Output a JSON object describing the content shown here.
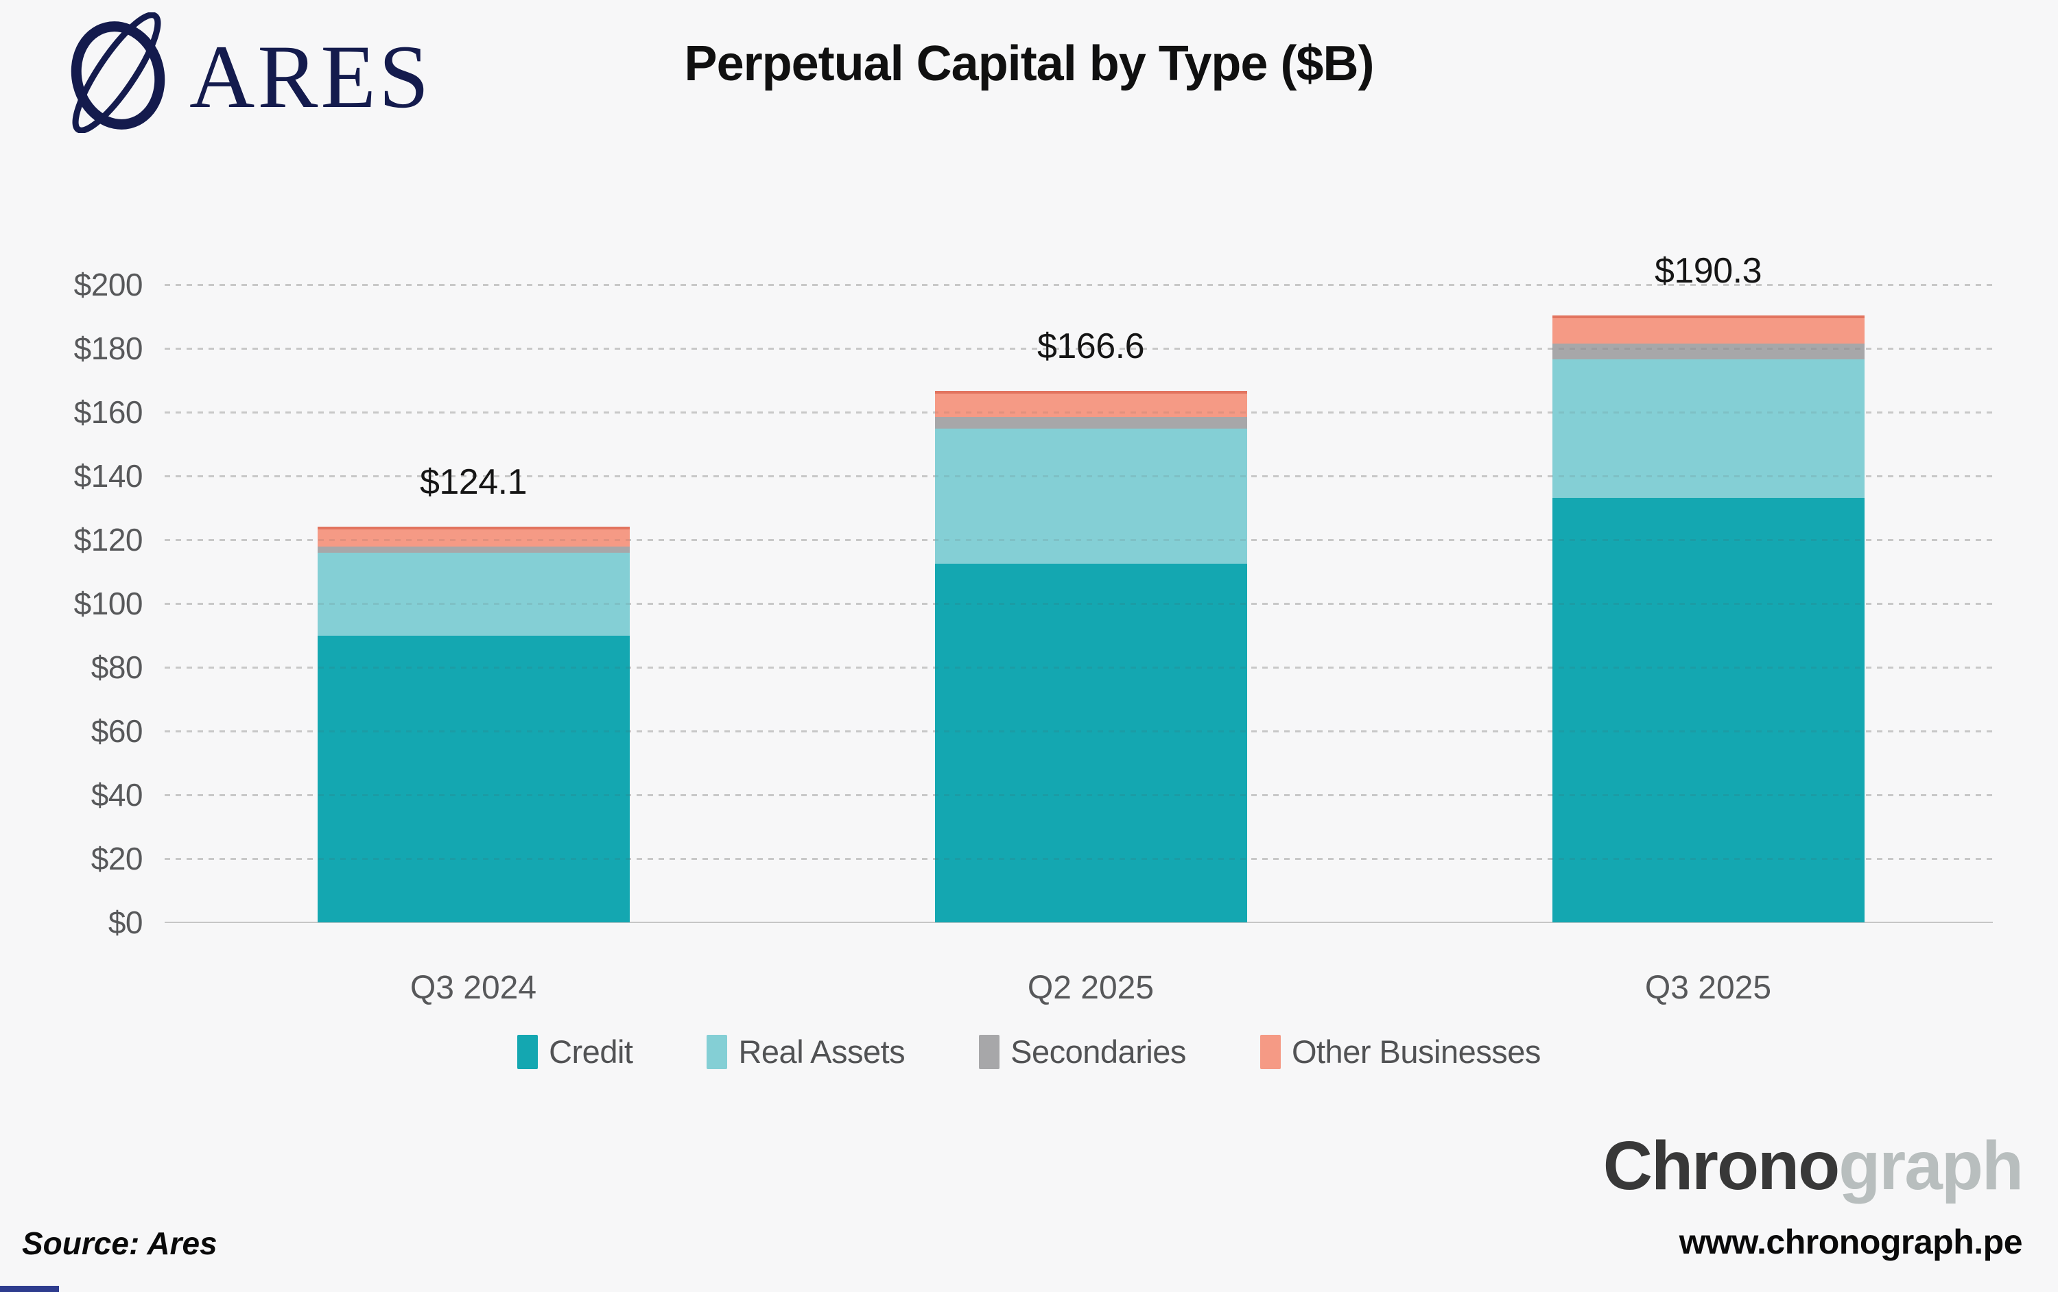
{
  "header": {
    "brand": "ARES",
    "title": "Perpetual Capital by Type ($B)"
  },
  "chart_data": {
    "type": "bar",
    "stacked": true,
    "title": "Perpetual Capital by Type ($B)",
    "categories": [
      "Q3 2024",
      "Q2 2025",
      "Q3 2025"
    ],
    "series": [
      {
        "name": "Credit",
        "color": "#14a7b1",
        "values": [
          89.8,
          112.5,
          133.1
        ]
      },
      {
        "name": "Real Assets",
        "color": "#84cfd5",
        "values": [
          26.2,
          42.3,
          43.5
        ]
      },
      {
        "name": "Secondaries",
        "color": "#a7a7a9",
        "values": [
          1.9,
          3.8,
          5.0
        ]
      },
      {
        "name": "Other Businesses",
        "color": "#f59a85",
        "values": [
          6.2,
          8.0,
          8.7
        ]
      }
    ],
    "totals": [
      124.1,
      166.6,
      190.3
    ],
    "total_labels": [
      "$124.1",
      "$166.6",
      "$190.3"
    ],
    "ylim": [
      0,
      200
    ],
    "ytick_step": 20,
    "ytick_labels": [
      "$0",
      "$20",
      "$40",
      "$60",
      "$80",
      "$100",
      "$120",
      "$140",
      "$160",
      "$180",
      "$200"
    ],
    "grid": "dashed-horizontal",
    "legend_position": "bottom"
  },
  "colors": {
    "background": "#f7f7f8",
    "logo_navy": "#141b4d",
    "grid": "#d8d8d8",
    "baseline": "#c6c6c6",
    "axis_text": "#57585a",
    "brand_dark": "#383838",
    "brand_light": "#b8bebe"
  },
  "footer": {
    "source": "Source: Ares",
    "brand_primary": "Chrono",
    "brand_secondary": "graph",
    "website": "www.chronograph.pe"
  }
}
